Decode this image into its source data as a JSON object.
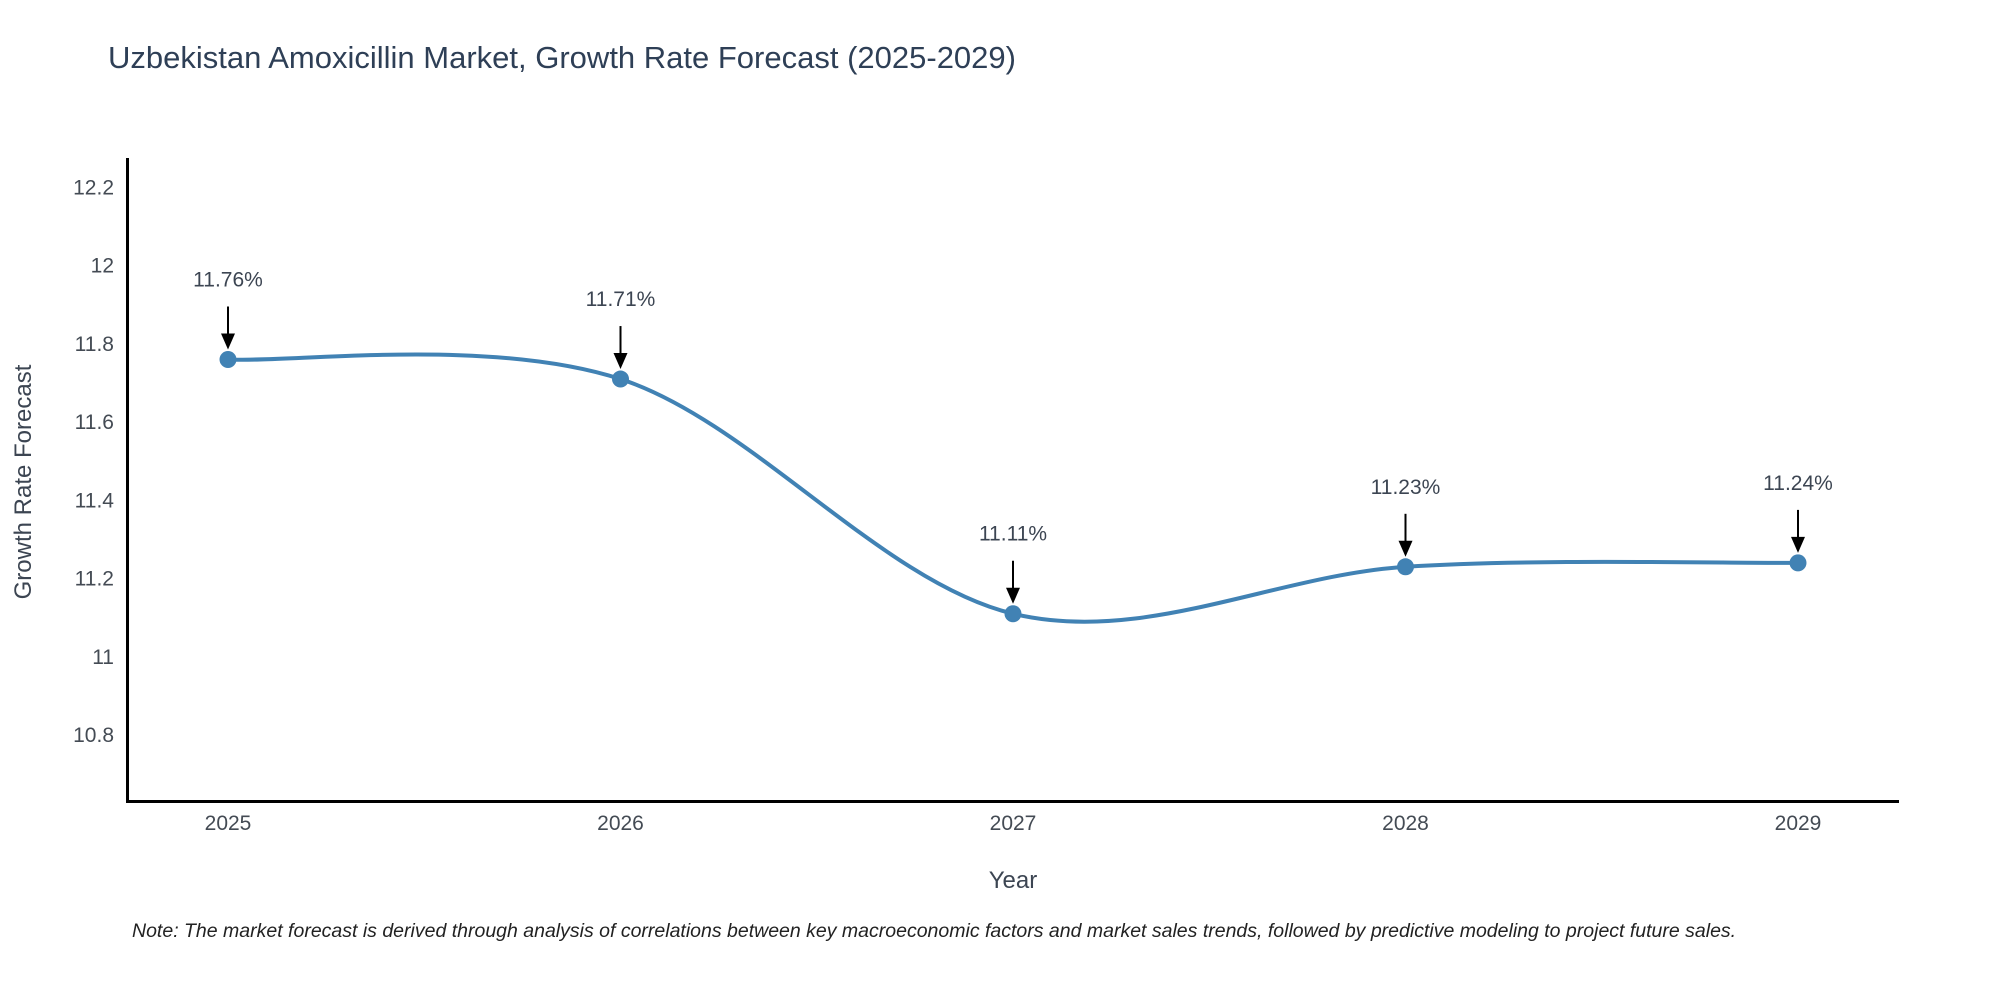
{
  "title": "Uzbekistan Amoxicillin Market, Growth Rate Forecast (2025-2029)",
  "note": "Note: The market forecast is derived through analysis of correlations between key macroeconomic factors and market sales trends, followed by predictive modeling to project future sales.",
  "chart_data": {
    "type": "line",
    "line_shape": "spline",
    "title": "Uzbekistan Amoxicillin Market, Growth Rate Forecast (2025-2029)",
    "xlabel": "Year",
    "ylabel": "Growth Rate Forecast",
    "categories": [
      "2025",
      "2026",
      "2027",
      "2028",
      "2029"
    ],
    "series": [
      {
        "name": "Growth Rate Forecast",
        "values": [
          11.76,
          11.71,
          11.11,
          11.23,
          11.24
        ]
      }
    ],
    "point_labels": [
      "11.76%",
      "11.71%",
      "11.11%",
      "11.23%",
      "11.24%"
    ],
    "y_tick_labels": [
      "10.8",
      "11",
      "11.2",
      "11.4",
      "11.6",
      "11.8",
      "12",
      "12.2"
    ],
    "y_tick_values": [
      10.8,
      11,
      11.2,
      11.4,
      11.6,
      11.8,
      12,
      12.2
    ],
    "ylim": [
      10.63,
      12.27
    ],
    "grid": false,
    "legend": false,
    "markers": true,
    "annotations_arrows": true,
    "colors": {
      "line": "#4182b4",
      "marker": "#4182b4",
      "axis": "#000000",
      "tick_text": "#444b54",
      "axis_title_text": "#3c4552",
      "annotation_text": "#3c4552",
      "arrow": "#000000",
      "title_text": "#2e3f56",
      "note_text": "#222222",
      "background": "#ffffff"
    }
  }
}
